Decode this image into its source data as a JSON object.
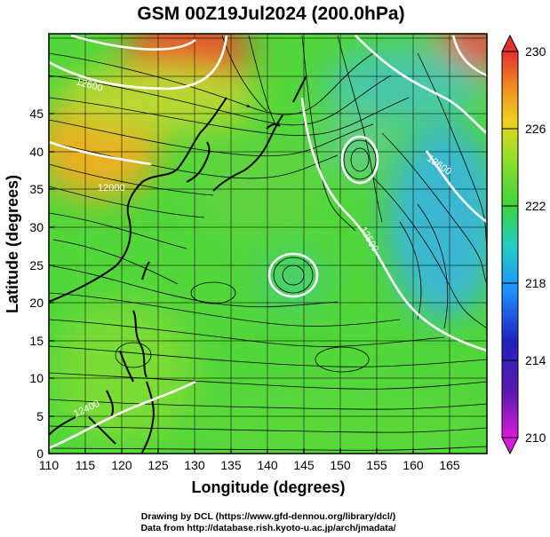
{
  "title": "GSM 00Z19Jul2024 (200.0hPa)",
  "axes": {
    "xlabel": "Longitude (degrees)",
    "ylabel": "Latitude (degrees)",
    "x_ticks": [
      "110",
      "115",
      "120",
      "125",
      "130",
      "135",
      "140",
      "145",
      "150",
      "155",
      "160",
      "165"
    ],
    "y_ticks": [
      "0",
      "5",
      "10",
      "15",
      "20",
      "25",
      "30",
      "35",
      "40",
      "45"
    ],
    "x_range": [
      110,
      170
    ],
    "y_range": [
      0,
      50
    ]
  },
  "colorbar": {
    "labels": [
      "230",
      "226",
      "222",
      "218",
      "214",
      "210"
    ],
    "range": [
      210,
      230
    ],
    "colors": [
      "#d91ad9",
      "#2020c0",
      "#1e90ff",
      "#22d0c0",
      "#3dd23d",
      "#8ee02a",
      "#f0d020",
      "#f08a20",
      "#e53030"
    ]
  },
  "contour_labels": [
    "12600",
    "12000",
    "12600",
    "12500",
    "12400"
  ],
  "credits": {
    "line1": "Drawing by DCL (https://www.gfd-dennou.org/library/dcl/)",
    "line2": "Data from http://database.rish.kyoto-u.ac.jp/arch/jmadata/"
  },
  "chart_data": {
    "type": "heatmap",
    "title": "GSM 00Z19Jul2024 (200.0hPa)",
    "xlabel": "Longitude (degrees)",
    "ylabel": "Latitude (degrees)",
    "xlim": [
      110,
      170
    ],
    "ylim": [
      0,
      50
    ],
    "colorbar_range": [
      210,
      230
    ],
    "field_anchors": [
      {
        "lon": 131,
        "lat": 47,
        "value": 229
      },
      {
        "lon": 116,
        "lat": 36,
        "value": 226
      },
      {
        "lon": 166,
        "lat": 47,
        "value": 229
      },
      {
        "lon": 156,
        "lat": 42,
        "value": 219
      },
      {
        "lon": 163,
        "lat": 28,
        "value": 219
      },
      {
        "lon": 145,
        "lat": 24,
        "value": 222
      },
      {
        "lon": 130,
        "lat": 20,
        "value": 223
      },
      {
        "lon": 113,
        "lat": 12,
        "value": 224
      },
      {
        "lon": 150,
        "lat": 8,
        "value": 223
      },
      {
        "lon": 138,
        "lat": 34,
        "value": 223
      },
      {
        "lon": 148,
        "lat": 37,
        "value": 220
      }
    ]
  }
}
